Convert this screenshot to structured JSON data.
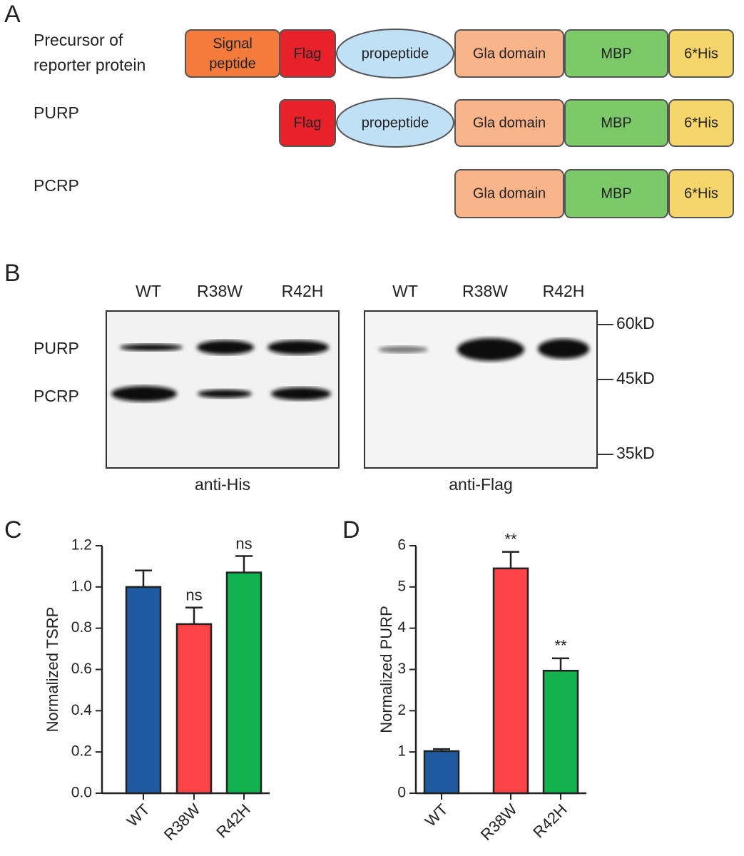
{
  "panel_a": {
    "letter": "A",
    "rows": [
      {
        "label": [
          "Precursor of",
          "reporter protein"
        ],
        "domains": [
          [
            "Signal",
            "peptide"
          ],
          "Flag",
          "propeptide",
          "Gla domain",
          "MBP",
          "6*His"
        ]
      },
      {
        "label": [
          "PURP"
        ],
        "domains": [
          "Flag",
          "propeptide",
          "Gla domain",
          "MBP",
          "6*His"
        ]
      },
      {
        "label": [
          "PCRP"
        ],
        "domains": [
          "Gla domain",
          "MBP",
          "6*His"
        ]
      }
    ]
  },
  "panel_b": {
    "letter": "B",
    "blots": [
      {
        "lanes": [
          "WT",
          "R38W",
          "R42H"
        ],
        "antibody": "anti-His"
      },
      {
        "lanes": [
          "WT",
          "R38W",
          "R42H"
        ],
        "antibody": "anti-Flag"
      }
    ],
    "bands": [
      "PURP",
      "PCRP"
    ],
    "markers": [
      "60kD",
      "45kD",
      "35kD"
    ]
  },
  "chart_data": [
    {
      "type": "bar",
      "panel": "C",
      "y_label": "Normalized TSRP",
      "categories": [
        "WT",
        "R38W",
        "R42H"
      ],
      "values": [
        1.0,
        0.82,
        1.07
      ],
      "errors": [
        0.08,
        0.08,
        0.08
      ],
      "colors": [
        "#1f5aa0",
        "#fc4447",
        "#12b24f"
      ],
      "significance": [
        null,
        "ns",
        "ns"
      ],
      "ylim": [
        0,
        1.2
      ],
      "yticks": [
        {
          "value": 0,
          "label": "0.0"
        },
        0.2,
        0.4,
        0.6,
        0.8,
        {
          "value": 1,
          "label": "1.0"
        },
        1.2
      ]
    },
    {
      "type": "bar",
      "panel": "D",
      "y_label": "Normalized PURP",
      "categories": [
        "WT",
        "R38W",
        "R42H"
      ],
      "values": [
        1.02,
        5.45,
        2.97
      ],
      "errors": [
        0.05,
        0.4,
        0.3
      ],
      "colors": [
        "#1f5aa0",
        "#fc4447",
        "#12b24f"
      ],
      "significance": [
        null,
        "**",
        "**"
      ],
      "ylim": [
        0,
        6
      ],
      "yticks": [
        0,
        1,
        2,
        3,
        4,
        5,
        6
      ]
    }
  ]
}
